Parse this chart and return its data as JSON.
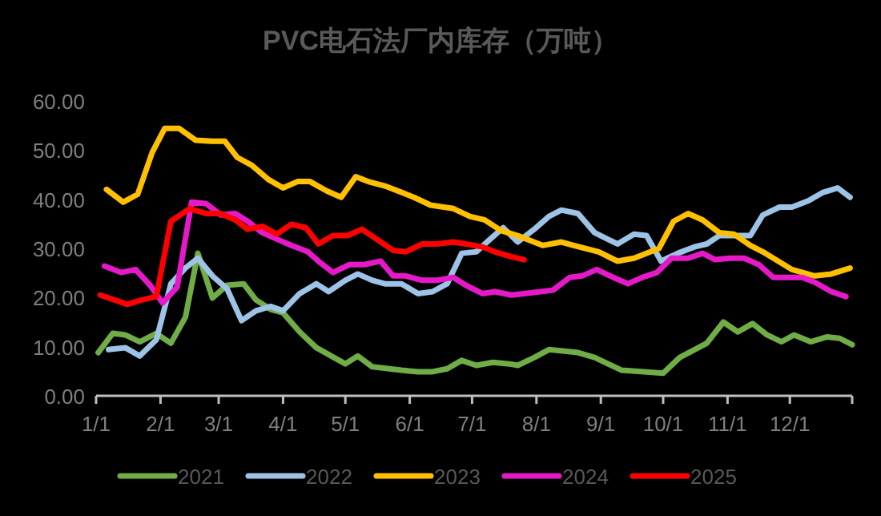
{
  "chart_data": {
    "type": "line",
    "title": "PVC电石法厂内库存（万吨）",
    "xlim": [
      "--01-01",
      "--12-31"
    ],
    "xticks": [
      {
        "value": "--01-01",
        "label": "1/1"
      },
      {
        "value": "--02-01",
        "label": "2/1"
      },
      {
        "value": "--03-01",
        "label": "3/1"
      },
      {
        "value": "--04-01",
        "label": "4/1"
      },
      {
        "value": "--05-01",
        "label": "5/1"
      },
      {
        "value": "--06-01",
        "label": "6/1"
      },
      {
        "value": "--07-01",
        "label": "7/1"
      },
      {
        "value": "--08-01",
        "label": "8/1"
      },
      {
        "value": "--09-01",
        "label": "9/1"
      },
      {
        "value": "--10-01",
        "label": "10/1"
      },
      {
        "value": "--11-01",
        "label": "11/1"
      },
      {
        "value": "--12-01",
        "label": "12/1"
      }
    ],
    "ylim": [
      0,
      60
    ],
    "yticks": [
      {
        "value": 0,
        "label": "0.00"
      },
      {
        "value": 10,
        "label": "10.00"
      },
      {
        "value": 20,
        "label": "20.00"
      },
      {
        "value": 30,
        "label": "30.00"
      },
      {
        "value": 40,
        "label": "40.00"
      },
      {
        "value": 50,
        "label": "50.00"
      },
      {
        "value": 60,
        "label": "60.00"
      }
    ],
    "grid": false,
    "legend": "bottom",
    "series": [
      {
        "name": "2021",
        "color": "#70ad47",
        "x": [
          "--01-02",
          "--01-09",
          "--01-15",
          "--01-22",
          "--01-30",
          "--02-06",
          "--02-13",
          "--02-19",
          "--02-26",
          "--03-05",
          "--03-13",
          "--03-19",
          "--03-26",
          "--04-01",
          "--04-09",
          "--04-17",
          "--05-01",
          "--05-07",
          "--05-14",
          "--05-28",
          "--06-05",
          "--06-12",
          "--06-19",
          "--06-26",
          "--07-03",
          "--07-11",
          "--07-19",
          "--07-23",
          "--07-31",
          "--08-07",
          "--08-21",
          "--08-29",
          "--09-11",
          "--10-01",
          "--10-09",
          "--10-22",
          "--10-30",
          "--11-06",
          "--11-13",
          "--11-20",
          "--11-27",
          "--12-03",
          "--12-11",
          "--12-19",
          "--12-25",
          "--12-31"
        ],
        "values": [
          8.8,
          12.7,
          12.4,
          11,
          12.7,
          10.7,
          16,
          29,
          19.9,
          22.5,
          22.8,
          19.5,
          17.6,
          16.9,
          13,
          9.8,
          6.5,
          8.1,
          5.9,
          5.2,
          4.9,
          4.9,
          5.5,
          7.2,
          6.2,
          6.8,
          6.5,
          6.2,
          7.8,
          9.4,
          8.8,
          7.8,
          5.2,
          4.6,
          7.8,
          10.7,
          15,
          13,
          14.7,
          12.4,
          11,
          12.4,
          11,
          12,
          11.7,
          10.4
        ]
      },
      {
        "name": "2022",
        "color": "#9dc3e6",
        "x": [
          "--01-07",
          "--01-15",
          "--01-22",
          "--01-30",
          "--02-06",
          "--02-13",
          "--02-19",
          "--02-26",
          "--03-05",
          "--03-12",
          "--03-19",
          "--03-26",
          "--04-01",
          "--04-09",
          "--04-17",
          "--04-23",
          "--05-01",
          "--05-07",
          "--05-14",
          "--05-20",
          "--05-28",
          "--06-05",
          "--06-12",
          "--06-19",
          "--06-26",
          "--07-03",
          "--07-09",
          "--07-16",
          "--07-23",
          "--07-31",
          "--08-07",
          "--08-13",
          "--08-21",
          "--08-29",
          "--09-09",
          "--09-17",
          "--09-23",
          "--09-30",
          "--10-08",
          "--10-16",
          "--10-22",
          "--10-28",
          "--11-05",
          "--11-12",
          "--11-18",
          "--11-26",
          "--12-02",
          "--12-10",
          "--12-17",
          "--12-24",
          "--12-30"
        ],
        "values": [
          9.4,
          9.8,
          8.1,
          11.4,
          22.8,
          26,
          28,
          24.4,
          21.8,
          15.3,
          17.3,
          18.2,
          17.3,
          20.8,
          22.8,
          21.2,
          23.5,
          24.8,
          23.5,
          22.8,
          22.8,
          20.8,
          21.2,
          22.8,
          29,
          29.3,
          31.6,
          34.2,
          31.3,
          33.9,
          36.5,
          37.8,
          37.1,
          33.2,
          30.9,
          32.9,
          32.6,
          27.4,
          29,
          30.3,
          30.9,
          32.6,
          32.6,
          32.6,
          36.8,
          38.4,
          38.4,
          39.7,
          41.4,
          42.3,
          40.4
        ]
      },
      {
        "name": "2023",
        "color": "#ffc000",
        "x": [
          "--01-06",
          "--01-14",
          "--01-21",
          "--01-28",
          "--02-03",
          "--02-10",
          "--02-18",
          "--02-26",
          "--03-04",
          "--03-10",
          "--03-17",
          "--03-25",
          "--04-01",
          "--04-08",
          "--04-14",
          "--04-22",
          "--04-29",
          "--05-06",
          "--05-12",
          "--05-20",
          "--05-28",
          "--06-03",
          "--06-11",
          "--06-22",
          "--06-30",
          "--07-07",
          "--07-15",
          "--07-23",
          "--07-29",
          "--08-04",
          "--08-13",
          "--08-19",
          "--08-31",
          "--09-09",
          "--09-17",
          "--09-29",
          "--10-06",
          "--10-13",
          "--10-20",
          "--10-28",
          "--11-04",
          "--11-12",
          "--11-18",
          "--12-02",
          "--12-13",
          "--12-21",
          "--12-30"
        ],
        "values": [
          42,
          39.4,
          41,
          49.5,
          54.4,
          54.4,
          52,
          51.8,
          51.8,
          48.5,
          46.9,
          44,
          42.3,
          43.6,
          43.6,
          41.7,
          40.4,
          44.6,
          43.6,
          42.7,
          41.4,
          40.4,
          38.8,
          38.1,
          36.5,
          35.8,
          33.6,
          32.6,
          31.6,
          30.6,
          31.3,
          30.6,
          29.3,
          27.4,
          28,
          30,
          35.5,
          37.1,
          35.8,
          33.2,
          32.9,
          30.6,
          29.3,
          25.7,
          24.4,
          24.8,
          26
        ]
      },
      {
        "name": "2024",
        "color": "#e619c8",
        "x": [
          "--01-05",
          "--01-13",
          "--01-20",
          "--01-27",
          "--02-02",
          "--02-09",
          "--02-16",
          "--02-23",
          "--03-02",
          "--03-09",
          "--03-15",
          "--03-22",
          "--03-29",
          "--04-05",
          "--04-13",
          "--04-18",
          "--04-25",
          "--05-03",
          "--05-10",
          "--05-18",
          "--05-24",
          "--05-30",
          "--06-07",
          "--06-14",
          "--06-22",
          "--06-28",
          "--07-06",
          "--07-12",
          "--07-20",
          "--07-26",
          "--08-03",
          "--08-09",
          "--08-17",
          "--08-23",
          "--08-30",
          "--09-07",
          "--09-14",
          "--09-21",
          "--09-28",
          "--10-05",
          "--10-13",
          "--10-20",
          "--10-26",
          "--11-02",
          "--11-09",
          "--11-16",
          "--11-23",
          "--12-01",
          "--12-07",
          "--12-13",
          "--12-21",
          "--12-28"
        ],
        "values": [
          26.4,
          25.1,
          25.7,
          22.5,
          18.9,
          22.1,
          39.4,
          39.1,
          36.8,
          37.1,
          35.5,
          33.2,
          31.9,
          30.6,
          29.3,
          27.4,
          25.1,
          26.7,
          26.7,
          27.4,
          24.4,
          24.4,
          23.5,
          23.5,
          24.1,
          22.5,
          20.8,
          21.2,
          20.5,
          20.8,
          21.2,
          21.5,
          24.1,
          24.4,
          25.7,
          24.1,
          22.8,
          24.1,
          25.1,
          28,
          28,
          29,
          27.7,
          28,
          28,
          26.7,
          24.1,
          24.1,
          24.1,
          23.1,
          21.2,
          20.2
        ]
      },
      {
        "name": "2025",
        "color": "#ff0000",
        "x": [
          "--01-03",
          "--01-10",
          "--01-16",
          "--01-23",
          "--01-30",
          "--02-06",
          "--02-15",
          "--02-23",
          "--03-02",
          "--03-09",
          "--03-15",
          "--03-22",
          "--03-29",
          "--04-05",
          "--04-12",
          "--04-18",
          "--04-25",
          "--05-02",
          "--05-09",
          "--05-16",
          "--05-24",
          "--05-30",
          "--06-07",
          "--06-14",
          "--06-22",
          "--06-28",
          "--07-06",
          "--07-12",
          "--07-20",
          "--07-26"
        ],
        "values": [
          20.5,
          19.5,
          18.6,
          19.5,
          20.2,
          35.5,
          38.1,
          37.1,
          37.1,
          35.8,
          33.9,
          34.5,
          32.9,
          34.9,
          34.2,
          30.9,
          32.6,
          32.6,
          33.9,
          31.9,
          29.6,
          29.3,
          30.9,
          30.9,
          31.3,
          30.9,
          30.3,
          29.3,
          28.3,
          27.7
        ]
      }
    ]
  }
}
